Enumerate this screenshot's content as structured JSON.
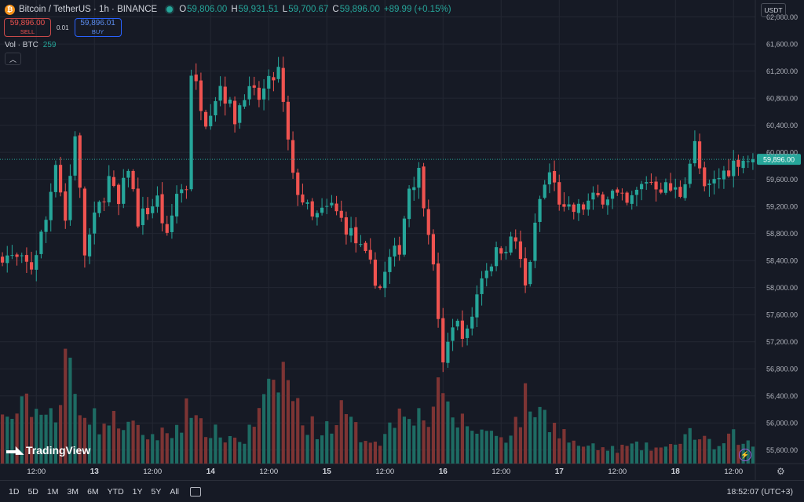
{
  "header": {
    "title": "Bitcoin / TetherUS · 1h · BINANCE",
    "o_label": "O",
    "o_value": "59,806.00",
    "h_label": "H",
    "h_value": "59,931.51",
    "l_label": "L",
    "l_value": "59,700.67",
    "c_label": "C",
    "c_value": "59,896.00",
    "change": "+89.99 (+0.15%)"
  },
  "trade": {
    "sell_price": "59,896.00",
    "sell_label": "SELL",
    "spread": "0.01",
    "buy_price": "59,896.01",
    "buy_label": "BUY"
  },
  "volume_legend": {
    "label": "Vol · BTC",
    "value": "259"
  },
  "currency": "USDT",
  "last_price_tag": "59,896.00",
  "watermark": "TradingView",
  "timeframes": [
    "1D",
    "5D",
    "1M",
    "3M",
    "6M",
    "YTD",
    "1Y",
    "5Y",
    "All"
  ],
  "clock": "18:52:07 (UTC+3)",
  "colors": {
    "up": "#26a69a",
    "down": "#ef5350",
    "up_vol": "#1e6b63",
    "down_vol": "#7d3434",
    "background": "#161a25",
    "grid": "#232733",
    "price_line": "#26a69a"
  },
  "icons": [
    "bitcoin-coin-icon",
    "market-status-icon",
    "collapse-chevron-icon",
    "lightning-icon",
    "settings-gear-icon",
    "calendar-range-icon"
  ],
  "chart_data": {
    "type": "candlestick",
    "symbol": "BTCUSDT",
    "interval": "1h",
    "ylim": [
      55400,
      62250
    ],
    "y_ticks": [
      55600,
      56000,
      56400,
      56800,
      57200,
      57600,
      58000,
      58400,
      58800,
      59200,
      59600,
      60000,
      60400,
      60800,
      61200,
      61600,
      62000
    ],
    "y_tick_labels": [
      "55,600.00",
      "56,000.00",
      "56,400.00",
      "56,800.00",
      "57,200.00",
      "57,600.00",
      "58,000.00",
      "58,400.00",
      "58,800.00",
      "59,200.00",
      "59,600.00",
      "60,000.00",
      "60,400.00",
      "60,800.00",
      "61,200.00",
      "61,600.00",
      "62,000.00"
    ],
    "x_ticks": [
      {
        "bar": 7,
        "label": "12:00"
      },
      {
        "bar": 19,
        "label": "13"
      },
      {
        "bar": 31,
        "label": "12:00"
      },
      {
        "bar": 43,
        "label": "14"
      },
      {
        "bar": 55,
        "label": "12:00"
      },
      {
        "bar": 67,
        "label": "15"
      },
      {
        "bar": 79,
        "label": "12:00"
      },
      {
        "bar": 91,
        "label": "16"
      },
      {
        "bar": 103,
        "label": "12:00"
      },
      {
        "bar": 115,
        "label": "17"
      },
      {
        "bar": 127,
        "label": "12:00"
      },
      {
        "bar": 139,
        "label": "18"
      },
      {
        "bar": 151,
        "label": "12:00"
      }
    ],
    "last_price": 59896,
    "anchors_close": [
      [
        0,
        58500
      ],
      [
        6,
        58300
      ],
      [
        9,
        59000
      ],
      [
        11,
        59900
      ],
      [
        13,
        59000
      ],
      [
        15,
        60300
      ],
      [
        17,
        58500
      ],
      [
        19,
        59000
      ],
      [
        22,
        59600
      ],
      [
        24,
        59200
      ],
      [
        26,
        59800
      ],
      [
        28,
        59000
      ],
      [
        32,
        59300
      ],
      [
        34,
        58700
      ],
      [
        36,
        59400
      ],
      [
        38,
        59500
      ],
      [
        39,
        61200
      ],
      [
        42,
        60500
      ],
      [
        45,
        61000
      ],
      [
        48,
        60500
      ],
      [
        50,
        60900
      ],
      [
        53,
        60800
      ],
      [
        56,
        61100
      ],
      [
        57,
        61200
      ],
      [
        60,
        59600
      ],
      [
        62,
        59300
      ],
      [
        64,
        59000
      ],
      [
        68,
        59200
      ],
      [
        72,
        58800
      ],
      [
        76,
        58300
      ],
      [
        78,
        58000
      ],
      [
        80,
        58400
      ],
      [
        82,
        58600
      ],
      [
        84,
        59500
      ],
      [
        86,
        59700
      ],
      [
        88,
        58900
      ],
      [
        90,
        57600
      ],
      [
        91,
        56800
      ],
      [
        93,
        57500
      ],
      [
        96,
        57300
      ],
      [
        99,
        58200
      ],
      [
        103,
        58600
      ],
      [
        106,
        58700
      ],
      [
        108,
        58000
      ],
      [
        111,
        59300
      ],
      [
        113,
        59700
      ],
      [
        116,
        59100
      ],
      [
        119,
        59150
      ],
      [
        122,
        59300
      ],
      [
        126,
        59400
      ],
      [
        129,
        59200
      ],
      [
        133,
        59600
      ],
      [
        136,
        59500
      ],
      [
        140,
        59400
      ],
      [
        143,
        60100
      ],
      [
        145,
        59400
      ],
      [
        149,
        59700
      ],
      [
        152,
        59900
      ],
      [
        155,
        59896
      ]
    ],
    "anchors_volume": [
      [
        0,
        55
      ],
      [
        6,
        75
      ],
      [
        8,
        60
      ],
      [
        9,
        85
      ],
      [
        11,
        55
      ],
      [
        12,
        60
      ],
      [
        13,
        145
      ],
      [
        15,
        95
      ],
      [
        17,
        70
      ],
      [
        20,
        50
      ],
      [
        24,
        55
      ],
      [
        28,
        40
      ],
      [
        31,
        35
      ],
      [
        35,
        40
      ],
      [
        37,
        55
      ],
      [
        38,
        95
      ],
      [
        39,
        50
      ],
      [
        42,
        45
      ],
      [
        45,
        35
      ],
      [
        50,
        30
      ],
      [
        56,
        95
      ],
      [
        58,
        120
      ],
      [
        60,
        85
      ],
      [
        62,
        55
      ],
      [
        66,
        40
      ],
      [
        70,
        65
      ],
      [
        74,
        35
      ],
      [
        78,
        30
      ],
      [
        80,
        45
      ],
      [
        83,
        80
      ],
      [
        86,
        60
      ],
      [
        88,
        55
      ],
      [
        90,
        110
      ],
      [
        91,
        70
      ],
      [
        93,
        60
      ],
      [
        97,
        45
      ],
      [
        100,
        40
      ],
      [
        104,
        35
      ],
      [
        107,
        60
      ],
      [
        108,
        80
      ],
      [
        112,
        60
      ],
      [
        115,
        45
      ],
      [
        118,
        25
      ],
      [
        122,
        20
      ],
      [
        126,
        18
      ],
      [
        130,
        22
      ],
      [
        135,
        20
      ],
      [
        139,
        20
      ],
      [
        141,
        45
      ],
      [
        144,
        30
      ],
      [
        148,
        20
      ],
      [
        151,
        35
      ],
      [
        154,
        25
      ],
      [
        155,
        20
      ]
    ]
  }
}
